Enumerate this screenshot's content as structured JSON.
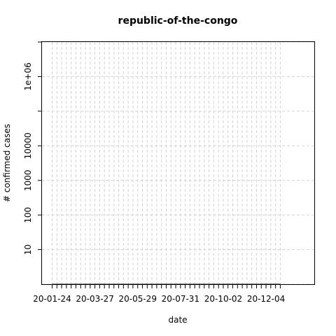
{
  "chart_data": {
    "type": "line",
    "title": "republic-of-the-congo",
    "xlabel": "date",
    "ylabel": "# confirmed cases",
    "y_scale": "log",
    "ylim": [
      1,
      10000000
    ],
    "y_ticks": [
      {
        "value": 10,
        "label": "10"
      },
      {
        "value": 100,
        "label": "100"
      },
      {
        "value": 1000,
        "label": "1000"
      },
      {
        "value": 10000,
        "label": "10000"
      },
      {
        "value": 1000000,
        "label": "1e+06"
      }
    ],
    "xlim": [
      "20-01-24",
      "20-12-27"
    ],
    "x_ticks_labeled": [
      "20-01-24",
      "20-03-27",
      "20-05-29",
      "20-07-31",
      "20-10-02",
      "20-12-04"
    ],
    "x_minor_tick_step_days": 7,
    "grid": true,
    "series": []
  }
}
